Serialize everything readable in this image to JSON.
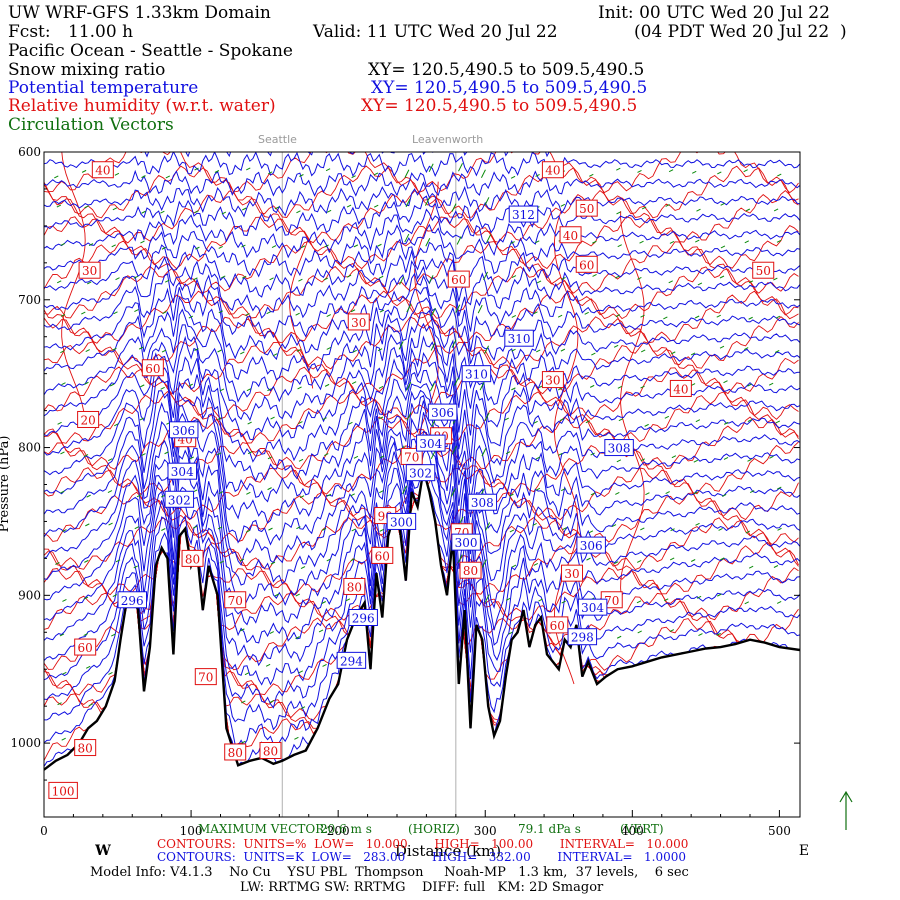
{
  "header": {
    "model": "UW WRF-GFS 1.33km Domain",
    "init": "Init: 00 UTC Wed 20 Jul 22",
    "fcst_label": "Fcst:",
    "fcst_value": "11.00 h",
    "valid": "Valid: 11 UTC Wed 20 Jul 22",
    "valid_local": "(04 PDT Wed 20 Jul 22  )",
    "region": "Pacific Ocean - Seattle - Spokane"
  },
  "fields": [
    {
      "name": "Snow mixing ratio",
      "xy": "XY= 120.5,490.5 to 509.5,490.5",
      "color": "#000000"
    },
    {
      "name": "Potential temperature",
      "xy": "XY= 120.5,490.5 to 509.5,490.5",
      "color": "#1010e0"
    },
    {
      "name": "Relative humidity (w.r.t. water)",
      "xy": "XY= 120.5,490.5 to 509.5,490.5",
      "color": "#e01010"
    },
    {
      "name": "Circulation Vectors",
      "xy": "",
      "color": "#107010"
    }
  ],
  "locations": [
    {
      "name": "Seattle",
      "x_km": 162
    },
    {
      "name": "Leavenworth",
      "x_km": 280
    }
  ],
  "chart_data": {
    "type": "line",
    "xlabel": "Distance (km)",
    "ylabel": "Pressure (hPa)",
    "xlim": [
      0,
      514
    ],
    "ylim": [
      1050,
      600
    ],
    "x_ticks": [
      0,
      100,
      200,
      300,
      400,
      500
    ],
    "y_ticks": [
      600,
      700,
      800,
      900,
      1000
    ],
    "x_tick_labels": [
      "0",
      "100",
      "200",
      "300",
      "400",
      "500"
    ],
    "y_tick_labels": [
      "600",
      "700",
      "800",
      "900",
      "1000"
    ],
    "west_label": "W",
    "east_label": "E",
    "terrain": {
      "x": [
        0,
        8,
        16,
        24,
        30,
        36,
        42,
        48,
        52,
        56,
        60,
        64,
        68,
        72,
        76,
        80,
        84,
        88,
        92,
        96,
        100,
        104,
        108,
        112,
        118,
        124,
        132,
        140,
        148,
        156,
        162,
        170,
        178,
        186,
        194,
        200,
        206,
        212,
        218,
        222,
        226,
        230,
        234,
        238,
        242,
        246,
        250,
        254,
        258,
        262,
        266,
        270,
        274,
        278,
        282,
        286,
        290,
        294,
        298,
        302,
        306,
        310,
        314,
        318,
        322,
        326,
        330,
        334,
        338,
        342,
        346,
        350,
        354,
        358,
        362,
        366,
        370,
        376,
        382,
        390,
        400,
        410,
        420,
        430,
        440,
        450,
        460,
        470,
        480,
        490,
        500,
        514
      ],
      "p": [
        1018,
        1012,
        1008,
        1000,
        990,
        985,
        975,
        958,
        930,
        905,
        900,
        910,
        965,
        935,
        880,
        868,
        875,
        940,
        860,
        855,
        880,
        870,
        910,
        880,
        900,
        990,
        1015,
        1012,
        1010,
        1014,
        1012,
        1008,
        1005,
        990,
        970,
        960,
        930,
        915,
        905,
        950,
        885,
        915,
        860,
        845,
        855,
        890,
        830,
        840,
        815,
        830,
        850,
        880,
        900,
        860,
        960,
        910,
        990,
        920,
        930,
        975,
        995,
        985,
        955,
        930,
        925,
        910,
        935,
        920,
        915,
        940,
        945,
        950,
        930,
        935,
        920,
        955,
        945,
        960,
        955,
        950,
        948,
        945,
        942,
        940,
        938,
        936,
        935,
        933,
        930,
        932,
        935,
        937
      ]
    },
    "theta_contours": {
      "units": "K",
      "levels": [
        284,
        286,
        288,
        290,
        292,
        294,
        296,
        298,
        300,
        302,
        304,
        306,
        308,
        310,
        312,
        314
      ],
      "labeled": [
        {
          "value": 306,
          "x_km": 95,
          "p": 788
        },
        {
          "value": 304,
          "x_km": 94,
          "p": 816
        },
        {
          "value": 302,
          "x_km": 92,
          "p": 835
        },
        {
          "value": 296,
          "x_km": 60,
          "p": 903
        },
        {
          "value": 296,
          "x_km": 217,
          "p": 915
        },
        {
          "value": 294,
          "x_km": 209,
          "p": 944
        },
        {
          "value": 300,
          "x_km": 243,
          "p": 850
        },
        {
          "value": 302,
          "x_km": 256,
          "p": 817
        },
        {
          "value": 304,
          "x_km": 263,
          "p": 797
        },
        {
          "value": 306,
          "x_km": 271,
          "p": 776
        },
        {
          "value": 308,
          "x_km": 298,
          "p": 837
        },
        {
          "value": 310,
          "x_km": 294,
          "p": 750
        },
        {
          "value": 310,
          "x_km": 323,
          "p": 726
        },
        {
          "value": 312,
          "x_km": 326,
          "p": 642
        },
        {
          "value": 308,
          "x_km": 391,
          "p": 800
        },
        {
          "value": 306,
          "x_km": 372,
          "p": 866
        },
        {
          "value": 304,
          "x_km": 373,
          "p": 908
        },
        {
          "value": 298,
          "x_km": 366,
          "p": 928
        },
        {
          "value": 300,
          "x_km": 287,
          "p": 864
        }
      ]
    },
    "rh_contours": {
      "units": "%",
      "levels": [
        20,
        30,
        40,
        50,
        60,
        70,
        80,
        90,
        100
      ],
      "labeled": [
        {
          "value": 40,
          "x_km": 40,
          "p": 612
        },
        {
          "value": 30,
          "x_km": 31,
          "p": 680
        },
        {
          "value": 20,
          "x_km": 30,
          "p": 781
        },
        {
          "value": 60,
          "x_km": 74,
          "p": 746
        },
        {
          "value": 40,
          "x_km": 96,
          "p": 794
        },
        {
          "value": 30,
          "x_km": 214,
          "p": 715
        },
        {
          "value": 60,
          "x_km": 282,
          "p": 686
        },
        {
          "value": 40,
          "x_km": 346,
          "p": 612
        },
        {
          "value": 50,
          "x_km": 369,
          "p": 638
        },
        {
          "value": 40,
          "x_km": 358,
          "p": 656
        },
        {
          "value": 60,
          "x_km": 369,
          "p": 676
        },
        {
          "value": 50,
          "x_km": 489,
          "p": 680
        },
        {
          "value": 30,
          "x_km": 346,
          "p": 754
        },
        {
          "value": 40,
          "x_km": 433,
          "p": 760
        },
        {
          "value": 80,
          "x_km": 270,
          "p": 792
        },
        {
          "value": 70,
          "x_km": 250,
          "p": 806
        },
        {
          "value": 90,
          "x_km": 232,
          "p": 846
        },
        {
          "value": 60,
          "x_km": 230,
          "p": 873
        },
        {
          "value": 80,
          "x_km": 101,
          "p": 875
        },
        {
          "value": 60,
          "x_km": 28,
          "p": 935
        },
        {
          "value": 70,
          "x_km": 130,
          "p": 903
        },
        {
          "value": 70,
          "x_km": 110,
          "p": 955
        },
        {
          "value": 80,
          "x_km": 211,
          "p": 894
        },
        {
          "value": 80,
          "x_km": 130,
          "p": 1006
        },
        {
          "value": 80,
          "x_km": 154,
          "p": 1005
        },
        {
          "value": 80,
          "x_km": 28,
          "p": 1003
        },
        {
          "value": 100,
          "x_km": 13,
          "p": 1032
        },
        {
          "value": 70,
          "x_km": 284,
          "p": 857
        },
        {
          "value": 80,
          "x_km": 290,
          "p": 883
        },
        {
          "value": 30,
          "x_km": 359,
          "p": 885
        },
        {
          "value": 70,
          "x_km": 386,
          "p": 903
        },
        {
          "value": 60,
          "x_km": 349,
          "p": 920
        }
      ]
    },
    "footer": {
      "max_vector_label": "MAXIMUM VECTOR:",
      "max_vector_horiz": "20.6 m s",
      "horiz_unit": "(HORIZ)",
      "max_vector_vert": "79.1 dPa s",
      "vert_unit": "(VERT)",
      "rh_contours": "CONTOURS:  UNITS=%  LOW=   10.000       HIGH=   100.00       INTERVAL=   10.000",
      "theta_contours": "CONTOURS:  UNITS=K  LOW=   283.00       HIGH=   332.00       INTERVAL=   1.0000"
    }
  },
  "model_info": {
    "line1": "Model Info: V4.1.3    No Cu    YSU PBL  Thompson     Noah-MP   1.3 km,  37 levels,    6 sec",
    "line2": "LW: RRTMG SW: RRTMG    DIFF: full   KM: 2D Smagor"
  }
}
